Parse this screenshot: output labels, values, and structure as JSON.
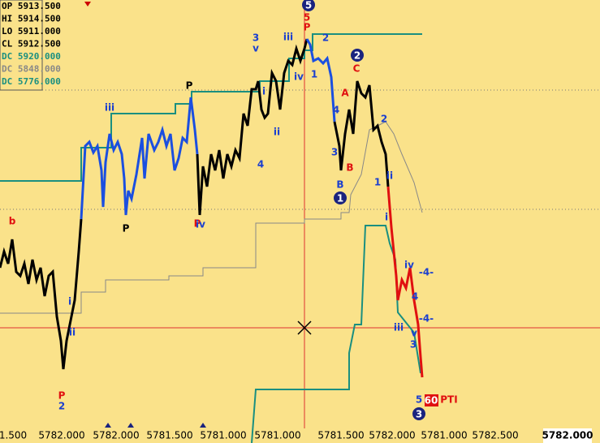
{
  "info_box": [
    "OP 5913.500",
    "HI 5914.500",
    "LO 5911.000",
    "CL 5912.500",
    "DC 5920.000",
    "DC 5848.000",
    "DC 5776.000"
  ],
  "x_axis_labels": [
    "1.500",
    "5782.000",
    "5782.000",
    "5781.500",
    "5781.000",
    "5781.000",
    "5781.500",
    "5782.000",
    "5781.000",
    "5782.500",
    "5782.000"
  ],
  "wave_labels": [
    "b",
    "P",
    "2",
    "i",
    "ii",
    "iii",
    "P",
    "P",
    "P",
    "iv",
    "3",
    "v",
    "i",
    "ii",
    "4",
    "iii",
    "iv",
    "5",
    "P",
    "1",
    "2",
    "A",
    "4",
    "3",
    "B",
    "B",
    "C",
    "2",
    "1",
    "ii",
    "i",
    "iv",
    "-4-",
    "4",
    "-4-",
    "iii",
    "v",
    "3",
    "5",
    "PTI"
  ],
  "circled_labels": [
    "5",
    "2",
    "1",
    "3"
  ],
  "flag": "60"
}
